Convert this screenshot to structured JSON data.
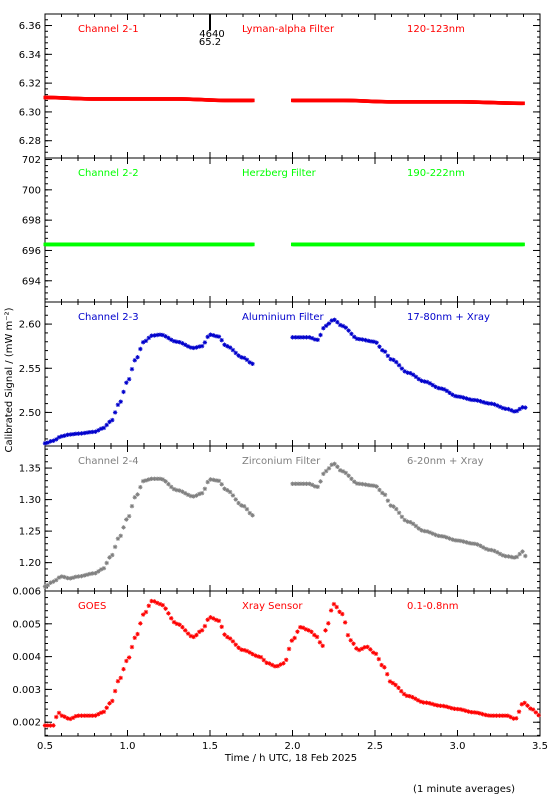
{
  "figure": {
    "ylabel": "Calibrated Signal / (mW m⁻²)",
    "xlabel": "Time / h UTC, 18 Feb 2025",
    "footnote": "(1 minute averages)",
    "marker_label_top": "4640",
    "marker_label_bottom": "65.2",
    "marker_x": 1.5
  },
  "chart_data": [
    {
      "type": "scatter",
      "channel": "Channel 2-1",
      "filter": "Lyman-alpha Filter",
      "band": "120-123nm",
      "color": "#ff0000",
      "xlim": [
        0.5,
        3.5
      ],
      "ylim": [
        6.268,
        6.368
      ],
      "yticks": [
        6.28,
        6.3,
        6.32,
        6.34,
        6.36
      ],
      "ytick_labels": [
        "6.28",
        "6.30",
        "6.32",
        "6.34",
        "6.36"
      ],
      "gap": [
        1.76,
        2.0
      ],
      "series": [
        {
          "x": [
            0.5,
            0.8,
            1.0,
            1.3,
            1.6,
            1.76
          ],
          "y": [
            6.31,
            6.309,
            6.309,
            6.309,
            6.308,
            6.308
          ]
        },
        {
          "x": [
            2.0,
            2.3,
            2.6,
            3.0,
            3.4
          ],
          "y": [
            6.308,
            6.308,
            6.307,
            6.307,
            6.306
          ]
        }
      ]
    },
    {
      "type": "scatter",
      "channel": "Channel 2-2",
      "filter": "Herzberg Filter",
      "band": "190-222nm",
      "color": "#00ff00",
      "xlim": [
        0.5,
        3.5
      ],
      "ylim": [
        692.6,
        702.1
      ],
      "yticks": [
        694,
        696,
        698,
        700,
        702
      ],
      "ytick_labels": [
        "694",
        "696",
        "698",
        "700",
        "702"
      ],
      "gap": [
        1.76,
        2.0
      ],
      "series": [
        {
          "x": [
            0.5,
            1.0,
            1.5,
            1.76
          ],
          "y": [
            696.4,
            696.4,
            696.4,
            696.4
          ]
        },
        {
          "x": [
            2.0,
            2.5,
            3.0,
            3.4
          ],
          "y": [
            696.4,
            696.4,
            696.4,
            696.4
          ]
        }
      ]
    },
    {
      "type": "scatter",
      "channel": "Channel 2-3",
      "filter": "Aluminium Filter",
      "band": "17-80nm + Xray",
      "color": "#0000cc",
      "xlim": [
        0.5,
        3.5
      ],
      "ylim": [
        2.462,
        2.625
      ],
      "yticks": [
        2.5,
        2.55,
        2.6
      ],
      "ytick_labels": [
        "2.50",
        "2.55",
        "2.60"
      ],
      "gap": [
        1.76,
        2.0
      ],
      "series": [
        {
          "x": [
            0.5,
            0.55,
            0.6,
            0.65,
            0.7,
            0.8,
            0.85,
            0.9,
            0.95,
            1.0,
            1.05,
            1.1,
            1.15,
            1.2,
            1.3,
            1.4,
            1.45,
            1.5,
            1.55,
            1.6,
            1.7,
            1.76
          ],
          "y": [
            2.465,
            2.468,
            2.473,
            2.475,
            2.476,
            2.478,
            2.482,
            2.49,
            2.51,
            2.535,
            2.56,
            2.58,
            2.587,
            2.588,
            2.58,
            2.573,
            2.575,
            2.588,
            2.586,
            2.575,
            2.562,
            2.555
          ]
        },
        {
          "x": [
            2.0,
            2.1,
            2.15,
            2.2,
            2.25,
            2.3,
            2.4,
            2.5,
            2.55,
            2.6,
            2.7,
            2.8,
            2.9,
            3.0,
            3.1,
            3.2,
            3.3,
            3.35,
            3.4,
            3.42
          ],
          "y": [
            2.585,
            2.585,
            2.582,
            2.598,
            2.605,
            2.598,
            2.583,
            2.58,
            2.57,
            2.56,
            2.545,
            2.535,
            2.527,
            2.518,
            2.514,
            2.51,
            2.504,
            2.501,
            2.506,
            2.505
          ]
        }
      ]
    },
    {
      "type": "scatter",
      "channel": "Channel 2-4",
      "filter": "Zirconium Filter",
      "band": "6-20nm + Xray",
      "color": "#808080",
      "xlim": [
        0.5,
        3.5
      ],
      "ylim": [
        1.155,
        1.385
      ],
      "yticks": [
        1.2,
        1.25,
        1.3,
        1.35
      ],
      "ytick_labels": [
        "1.20",
        "1.25",
        "1.30",
        "1.35"
      ],
      "gap": [
        1.76,
        2.0
      ],
      "series": [
        {
          "x": [
            0.5,
            0.55,
            0.6,
            0.65,
            0.7,
            0.8,
            0.85,
            0.9,
            0.95,
            1.0,
            1.05,
            1.1,
            1.15,
            1.2,
            1.3,
            1.4,
            1.45,
            1.5,
            1.55,
            1.6,
            1.7,
            1.76
          ],
          "y": [
            1.162,
            1.17,
            1.178,
            1.175,
            1.178,
            1.183,
            1.19,
            1.21,
            1.24,
            1.27,
            1.305,
            1.33,
            1.333,
            1.333,
            1.315,
            1.305,
            1.31,
            1.332,
            1.33,
            1.315,
            1.29,
            1.275
          ]
        },
        {
          "x": [
            2.0,
            2.1,
            2.15,
            2.2,
            2.25,
            2.3,
            2.4,
            2.5,
            2.55,
            2.6,
            2.7,
            2.8,
            2.9,
            3.0,
            3.1,
            3.2,
            3.3,
            3.35,
            3.4,
            3.42
          ],
          "y": [
            1.325,
            1.325,
            1.32,
            1.345,
            1.357,
            1.345,
            1.325,
            1.322,
            1.31,
            1.29,
            1.265,
            1.25,
            1.242,
            1.235,
            1.23,
            1.22,
            1.21,
            1.208,
            1.218,
            1.205
          ]
        }
      ]
    },
    {
      "type": "scatter",
      "channel": "GOES",
      "filter": "Xray Sensor",
      "band": "0.1-0.8nm",
      "color": "#ff0000",
      "xlim": [
        0.5,
        3.5
      ],
      "ylim": [
        0.00158,
        0.006
      ],
      "yticks": [
        0.002,
        0.003,
        0.004,
        0.005,
        0.006
      ],
      "ytick_labels": [
        "0.002",
        "0.003",
        "0.004",
        "0.005",
        "0.006"
      ],
      "gap": null,
      "series": [
        {
          "x": [
            0.5,
            0.55,
            0.58,
            0.6,
            0.65,
            0.7,
            0.8,
            0.85,
            0.9,
            0.95,
            1.0,
            1.05,
            1.1,
            1.15,
            1.2,
            1.3,
            1.4,
            1.45,
            1.5,
            1.55,
            1.6,
            1.7,
            1.8,
            1.85,
            1.9,
            1.95,
            2.0,
            2.05,
            2.1,
            2.15,
            2.18,
            2.2,
            2.25,
            2.3,
            2.35,
            2.4,
            2.45,
            2.5,
            2.55,
            2.6,
            2.7,
            2.8,
            2.9,
            3.0,
            3.1,
            3.2,
            3.3,
            3.35,
            3.4,
            3.45,
            3.5
          ],
          "y": [
            0.0019,
            0.0019,
            0.0023,
            0.0022,
            0.0021,
            0.0022,
            0.0022,
            0.0023,
            0.0026,
            0.0033,
            0.0039,
            0.0046,
            0.0053,
            0.0057,
            0.0056,
            0.005,
            0.0046,
            0.0048,
            0.0052,
            0.0051,
            0.0046,
            0.0042,
            0.004,
            0.0038,
            0.0037,
            0.0038,
            0.0045,
            0.0049,
            0.0048,
            0.0046,
            0.0043,
            0.0048,
            0.0056,
            0.0053,
            0.0045,
            0.0042,
            0.0043,
            0.0041,
            0.0037,
            0.0032,
            0.0028,
            0.0026,
            0.0025,
            0.0024,
            0.0023,
            0.0022,
            0.0022,
            0.0021,
            0.0026,
            0.0024,
            0.0022
          ]
        }
      ]
    }
  ]
}
